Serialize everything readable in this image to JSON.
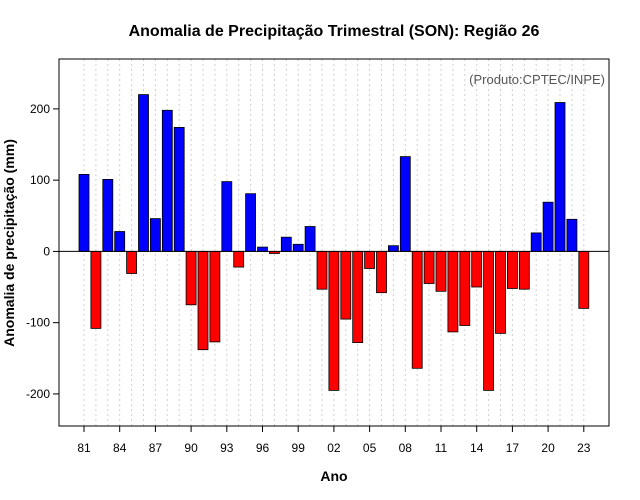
{
  "chart_data": {
    "type": "bar",
    "title": "Anomalia de Precipitação Trimestral (SON): Região 26",
    "credit": "(Produto:CPTEC/INPE)",
    "xlabel": "Ano",
    "ylabel": "Anomalia de precipitação (mm)",
    "ylim": [
      -245,
      270
    ],
    "yticks": [
      -200,
      -100,
      0,
      100,
      200
    ],
    "xtick_labels": [
      "81",
      "84",
      "87",
      "90",
      "93",
      "96",
      "99",
      "02",
      "05",
      "08",
      "11",
      "14",
      "17",
      "20",
      "23"
    ],
    "categories": [
      "1981",
      "1982",
      "1983",
      "1984",
      "1985",
      "1986",
      "1987",
      "1988",
      "1989",
      "1990",
      "1991",
      "1992",
      "1993",
      "1994",
      "1995",
      "1996",
      "1997",
      "1998",
      "1999",
      "2000",
      "2001",
      "2002",
      "2003",
      "2004",
      "2005",
      "2006",
      "2007",
      "2008",
      "2009",
      "2010",
      "2011",
      "2012",
      "2013",
      "2014",
      "2015",
      "2016",
      "2017",
      "2018",
      "2019",
      "2020",
      "2021",
      "2022",
      "2023"
    ],
    "values": [
      108,
      -108,
      101,
      28,
      -31,
      220,
      46,
      198,
      174,
      -75,
      -138,
      -127,
      98,
      -22,
      81,
      6,
      -3,
      20,
      10,
      35,
      -53,
      -195,
      -95,
      -128,
      -24,
      -58,
      8,
      133,
      -164,
      -45,
      -56,
      -113,
      -104,
      -50,
      -195,
      -115,
      -52,
      -53,
      26,
      69,
      209,
      45,
      -80
    ],
    "colors": {
      "positive": "#0000ff",
      "negative": "#ff0000",
      "zero_line": "#000000",
      "grid": "#d0d0d0"
    }
  }
}
